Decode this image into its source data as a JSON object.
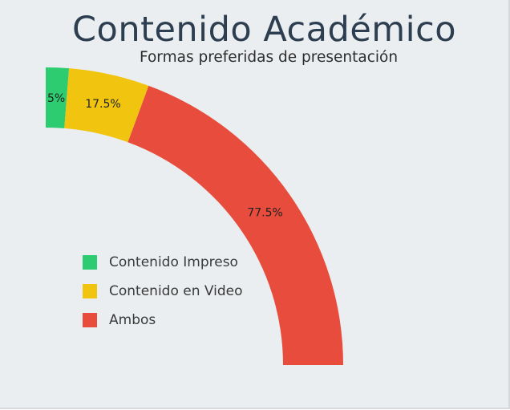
{
  "chart_data": {
    "type": "pie",
    "variant": "quarter-donut",
    "title": "Contenido Académico",
    "subtitle": "Formas preferidas de presentación",
    "categories": [
      "Contenido Impreso",
      "Contenido en Video",
      "Ambos"
    ],
    "values": [
      5,
      17.5,
      77.5
    ],
    "data_labels": [
      "5%",
      "17.5%",
      "77.5%"
    ],
    "colors": [
      "#2ecc71",
      "#f1c40f",
      "#e74c3c"
    ],
    "legend_placement": "bottom-left"
  }
}
